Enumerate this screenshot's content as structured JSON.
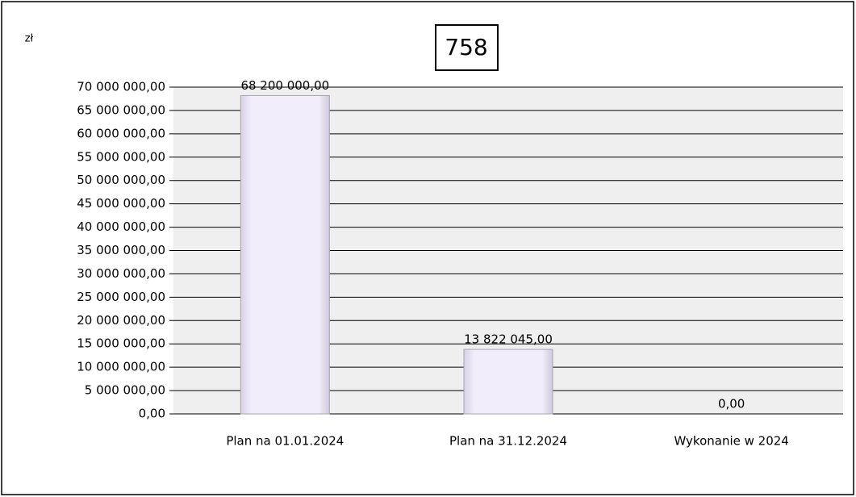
{
  "chart_data": {
    "type": "bar",
    "title": "758",
    "y_axis_label": "zł",
    "categories": [
      "Plan na 01.01.2024",
      "Plan na 31.12.2024",
      "Wykonanie w 2024"
    ],
    "values": [
      68200000,
      13822045,
      0
    ],
    "value_labels": [
      "68 200 000,00",
      "13 822 045,00",
      "0,00"
    ],
    "color": "#eeeaf8",
    "ylim": [
      0,
      70000000
    ],
    "yticks": [
      {
        "value": 0,
        "label": "0,00"
      },
      {
        "value": 5000000,
        "label": "5 000 000,00"
      },
      {
        "value": 10000000,
        "label": "10 000 000,00"
      },
      {
        "value": 15000000,
        "label": "15 000 000,00"
      },
      {
        "value": 20000000,
        "label": "20 000 000,00"
      },
      {
        "value": 25000000,
        "label": "25 000 000,00"
      },
      {
        "value": 30000000,
        "label": "30 000 000,00"
      },
      {
        "value": 35000000,
        "label": "35 000 000,00"
      },
      {
        "value": 40000000,
        "label": "40 000 000,00"
      },
      {
        "value": 45000000,
        "label": "45 000 000,00"
      },
      {
        "value": 50000000,
        "label": "50 000 000,00"
      },
      {
        "value": 55000000,
        "label": "55 000 000,00"
      },
      {
        "value": 60000000,
        "label": "60 000 000,00"
      },
      {
        "value": 65000000,
        "label": "65 000 000,00"
      },
      {
        "value": 70000000,
        "label": "70 000 000,00"
      }
    ],
    "grid": true
  }
}
